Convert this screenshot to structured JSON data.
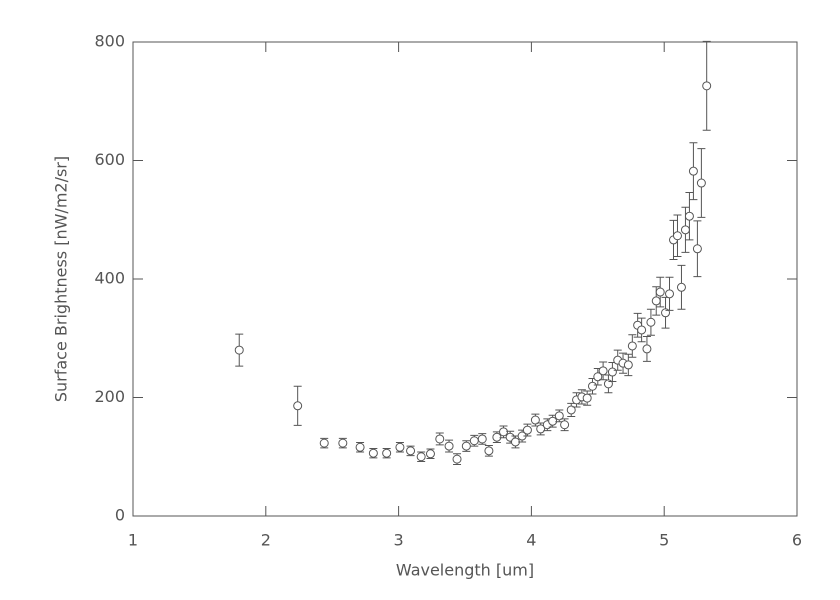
{
  "chart_data": {
    "type": "scatter",
    "x_label": "Wavelength [um]",
    "y_label": "Surface Brightness [nW/m2/sr]",
    "color": "#555555",
    "xlim": [
      1,
      6
    ],
    "xticks": [
      1,
      2,
      3,
      4,
      5,
      6
    ],
    "ylim": [
      0,
      800
    ],
    "yticks": [
      0,
      200,
      400,
      600,
      800
    ],
    "series": [
      {
        "x": [
          1.8,
          2.24,
          2.44,
          2.58,
          2.71,
          2.81,
          2.91,
          3.01,
          3.09,
          3.17,
          3.24,
          3.31,
          3.38,
          3.44,
          3.51,
          3.57,
          3.63,
          3.68,
          3.74,
          3.79,
          3.84,
          3.88,
          3.93,
          3.97,
          4.03,
          4.07,
          4.12,
          4.16,
          4.21,
          4.25,
          4.3,
          4.34,
          4.38,
          4.42,
          4.46,
          4.5,
          4.54,
          4.58,
          4.61,
          4.65,
          4.69,
          4.73,
          4.76,
          4.8,
          4.83,
          4.87,
          4.9,
          4.94,
          4.97,
          5.01,
          5.04,
          5.07,
          5.1,
          5.13,
          5.16,
          5.19,
          5.22,
          5.25,
          5.28,
          5.32
        ],
        "values": [
          280,
          186,
          123,
          123,
          116,
          106,
          106,
          116,
          110,
          100,
          105,
          130,
          118,
          96,
          118,
          127,
          130,
          110,
          133,
          142,
          133,
          125,
          135,
          145,
          162,
          147,
          154,
          160,
          169,
          154,
          179,
          196,
          201,
          199,
          219,
          235,
          245,
          223,
          243,
          263,
          258,
          255,
          287,
          322,
          314,
          282,
          327,
          363,
          378,
          343,
          375,
          466,
          473,
          386,
          483,
          506,
          582,
          451,
          562,
          726
        ],
        "errors": [
          27,
          33,
          8,
          8,
          8,
          8,
          8,
          8,
          8,
          8,
          8,
          10,
          10,
          9,
          9,
          9,
          9,
          9,
          9,
          10,
          10,
          10,
          10,
          10,
          10,
          10,
          10,
          10,
          10,
          10,
          11,
          12,
          12,
          12,
          13,
          14,
          15,
          15,
          16,
          17,
          17,
          18,
          19,
          20,
          20,
          21,
          22,
          24,
          25,
          26,
          28,
          33,
          35,
          37,
          38,
          40,
          48,
          47,
          58,
          75
        ]
      }
    ]
  }
}
